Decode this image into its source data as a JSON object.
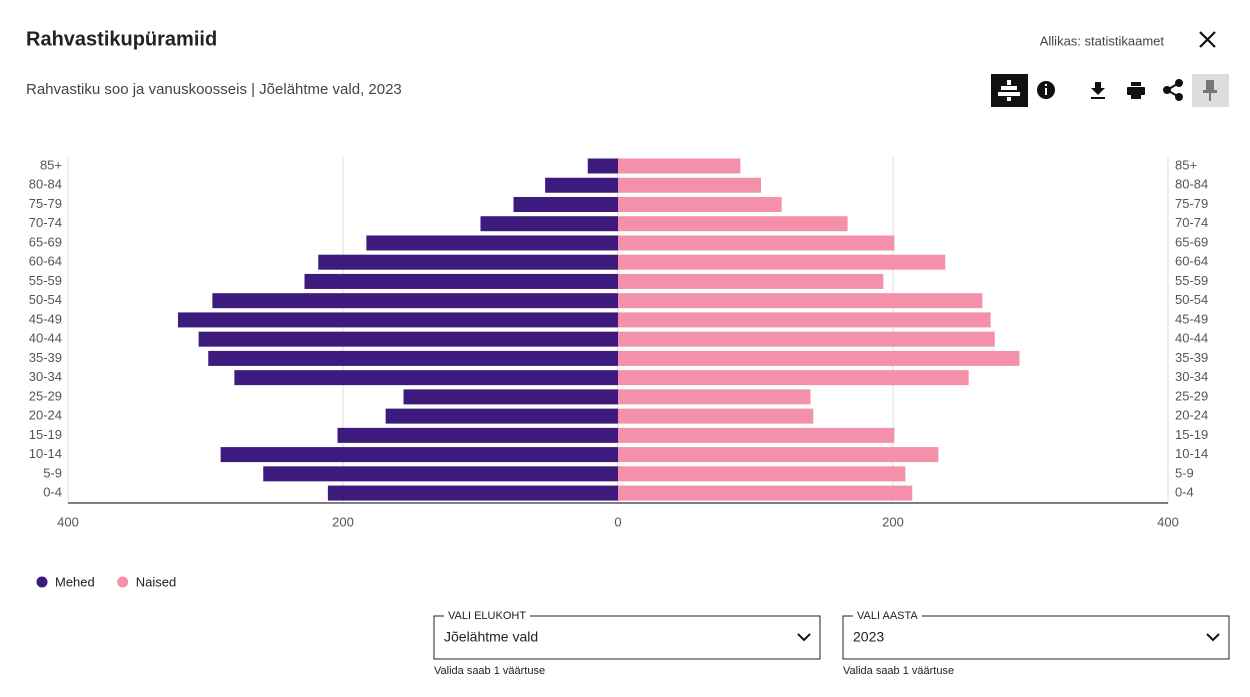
{
  "header": {
    "title": "Rahvastikupüramiid",
    "source": "Allikas: statistikaamet",
    "subtitle": "Rahvastiku soo ja vanuskoosseis | Jõelähtme vald, 2023"
  },
  "chart_data": {
    "type": "pyramid",
    "categories": [
      "85+",
      "80-84",
      "75-79",
      "70-74",
      "65-69",
      "60-64",
      "55-59",
      "50-54",
      "45-49",
      "40-44",
      "35-39",
      "30-34",
      "25-29",
      "20-24",
      "15-19",
      "10-14",
      "5-9",
      "0-4"
    ],
    "series": [
      {
        "name": "Mehed",
        "color": "#3d1a7e",
        "values": [
          -22,
          -53,
          -76,
          -100,
          -183,
          -218,
          -228,
          -295,
          -320,
          -305,
          -298,
          -279,
          -156,
          -169,
          -204,
          -289,
          -258,
          -211
        ]
      },
      {
        "name": "Naised",
        "color": "#f490aa",
        "values": [
          89,
          104,
          119,
          167,
          201,
          238,
          193,
          265,
          271,
          274,
          292,
          255,
          140,
          142,
          201,
          233,
          209,
          214
        ]
      }
    ],
    "xlim": [
      -400,
      400
    ],
    "xticks": [
      {
        "value": -400,
        "label": "400"
      },
      {
        "value": -200,
        "label": "200"
      },
      0,
      200,
      400
    ],
    "grid": true,
    "legend": "bottom-left"
  },
  "filters": [
    {
      "label": "VALI ELUKOHT",
      "value": "Jõelähtme vald",
      "hint": "Valida saab 1 väärtuse"
    },
    {
      "label": "VALI AASTA",
      "value": "2023",
      "hint": "Valida saab 1 väärtuse"
    }
  ]
}
